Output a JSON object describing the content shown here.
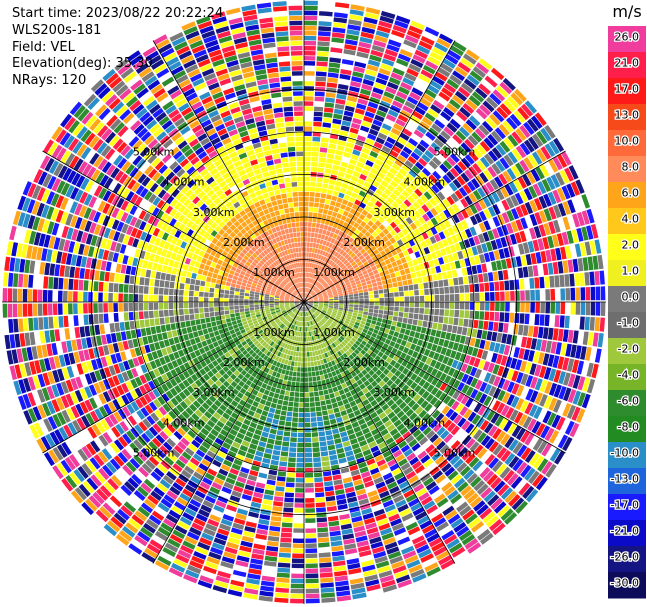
{
  "chart_data": {
    "type": "ppi-radar",
    "header": {
      "start_time": "Start time: 2023/08/22 20:22:24",
      "instrument": "WLS200s-181",
      "field": "Field: VEL",
      "elevation": "Elevation(deg): 35.30",
      "nrays": "NRays: 120"
    },
    "n_rays": 120,
    "range_ring_labels": [
      "1.00km",
      "2.00km",
      "3.00km",
      "4.00km",
      "5.00km"
    ],
    "range_rings_km": [
      1,
      2,
      3,
      4,
      5
    ],
    "max_range_km": 7.1,
    "colorbar": {
      "unit": "m/s",
      "ticks": [
        "26.0",
        "21.0",
        "17.0",
        "13.0",
        "10.0",
        "8.0",
        "6.0",
        "4.0",
        "2.0",
        "1.0",
        "0.0",
        "-1.0",
        "-2.0",
        "-4.0",
        "-6.0",
        "-8.0",
        "-10.0",
        "-13.0",
        "-17.0",
        "-21.0",
        "-26.0",
        "-30.0"
      ],
      "colors": [
        "#f03c9c",
        "#ff1f4a",
        "#ff1a1a",
        "#f74a1a",
        "#ff6a3a",
        "#ff8a5a",
        "#ffa51a",
        "#ffc81a",
        "#ffff1a",
        "#f0f020",
        "#7a7a7a",
        "#6e6e6e",
        "#a0c83c",
        "#78b428",
        "#2e8b2e",
        "#228b22",
        "#2a8fc8",
        "#1e64dc",
        "#1a1aff",
        "#0a0ac8",
        "#141482",
        "#0c0c5a"
      ]
    },
    "colors_by_zone": {
      "north_near": "#ff8a5a",
      "north_mid": "#ffa51a",
      "north_far": "#ffff1a",
      "center": "#7a7a7a",
      "south_near": "#a0c83c",
      "south_far": "#2e8b2e",
      "noise": [
        "#f03c9c",
        "#ff1f4a",
        "#ffff1a",
        "#1a1aff",
        "#0a0ac8",
        "#141482",
        "#2e8b2e",
        "#ffa51a",
        "#ff1a1a",
        "#7a7a7a",
        "#2a8fc8",
        "#ffffff"
      ]
    }
  }
}
